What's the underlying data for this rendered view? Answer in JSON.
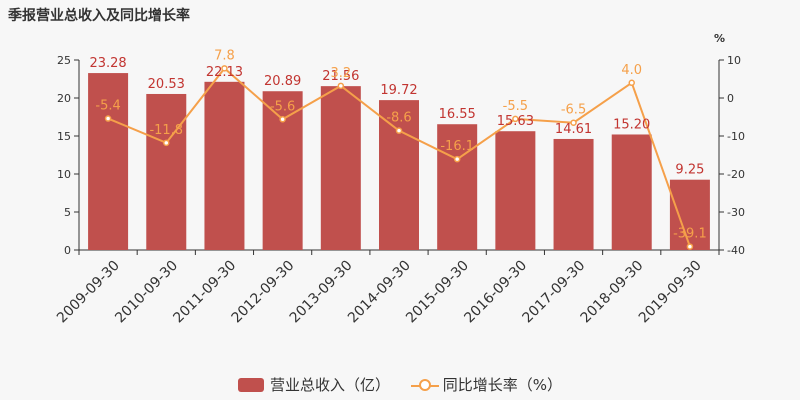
{
  "chart_data": {
    "type": "bar",
    "title": "季报营业总收入及同比增长率",
    "categories": [
      "2009-09-30",
      "2010-09-30",
      "2011-09-30",
      "2012-09-30",
      "2013-09-30",
      "2014-09-30",
      "2015-09-30",
      "2016-09-30",
      "2017-09-30",
      "2018-09-30",
      "2019-09-30"
    ],
    "series": [
      {
        "name": "营业总收入（亿）",
        "type": "bar",
        "axis": "left",
        "color": "#c0504d",
        "values": [
          23.28,
          20.53,
          22.13,
          20.89,
          21.56,
          19.72,
          16.55,
          15.63,
          14.61,
          15.2,
          9.25
        ],
        "labels": [
          "23.28",
          "20.53",
          "22.13",
          "20.89",
          "21.56",
          "19.72",
          "16.55",
          "15.63",
          "14.61",
          "15.20",
          "9.25"
        ]
      },
      {
        "name": "同比增长率（%）",
        "type": "line",
        "axis": "right",
        "color": "#f5a04a",
        "values": [
          -5.4,
          -11.8,
          7.8,
          -5.6,
          3.2,
          -8.6,
          -16.1,
          -5.5,
          -6.5,
          4.0,
          -39.1
        ],
        "labels": [
          "-5.4",
          "-11.8",
          "7.8",
          "-5.6",
          "3.2",
          "-8.6",
          "-16.1",
          "-5.5",
          "-6.5",
          "4.0",
          "-39.1"
        ]
      }
    ],
    "left_axis": {
      "min": 0,
      "max": 25,
      "ticks": [
        "0",
        "5",
        "10",
        "15",
        "20",
        "25"
      ]
    },
    "right_axis": {
      "min": -40,
      "max": 10,
      "unit": "%",
      "ticks": [
        "-40",
        "-30",
        "-20",
        "-10",
        "0",
        "10"
      ]
    },
    "grid": false,
    "legend_position": "bottom-center"
  },
  "legend": {
    "bar_label": "营业总收入（亿）",
    "line_label": "同比增长率（%）"
  }
}
